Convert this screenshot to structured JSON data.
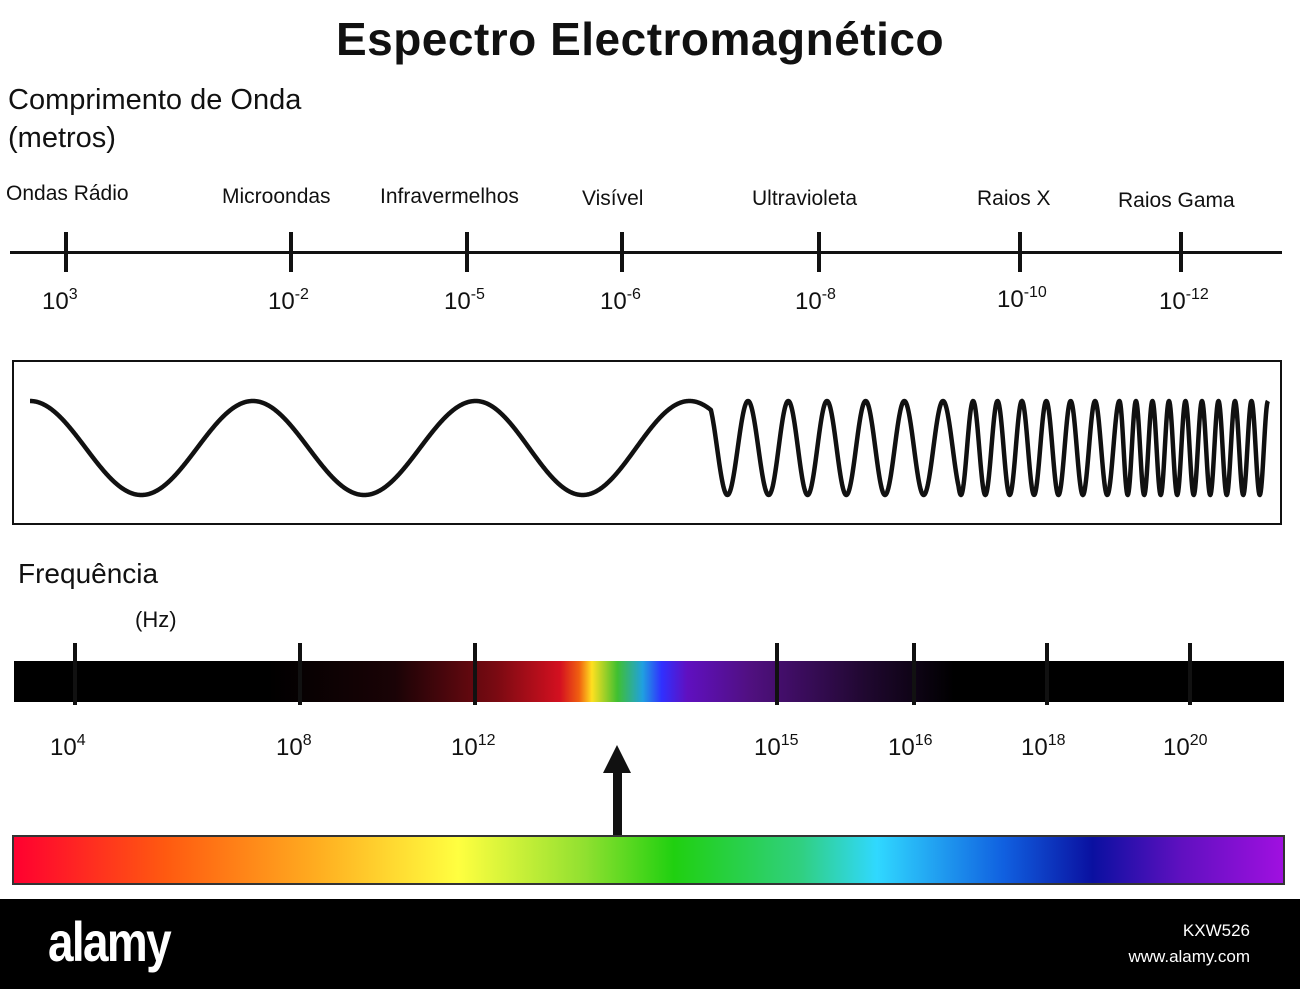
{
  "title": "Espectro Electromagnético",
  "wavelength": {
    "label_line1": "Comprimento de Onda",
    "label_line2": "(metros)",
    "regions": [
      "Ondas Rádio",
      "Microondas",
      "Infravermelhos",
      "Visível",
      "Ultravioleta",
      "Raios X",
      "Raios Gama"
    ],
    "ticks": [
      {
        "base": "10",
        "exp": "3"
      },
      {
        "base": "10",
        "exp": "-2"
      },
      {
        "base": "10",
        "exp": "-5"
      },
      {
        "base": "10",
        "exp": "-6"
      },
      {
        "base": "10",
        "exp": "-8"
      },
      {
        "base": "10",
        "exp": "-10"
      },
      {
        "base": "10",
        "exp": "-12"
      }
    ]
  },
  "frequency": {
    "label": "Frequência",
    "unit": "(Hz)",
    "ticks": [
      {
        "base": "10",
        "exp": "4"
      },
      {
        "base": "10",
        "exp": "8"
      },
      {
        "base": "10",
        "exp": "12"
      },
      {
        "base": "10",
        "exp": "15"
      },
      {
        "base": "10",
        "exp": "16"
      },
      {
        "base": "10",
        "exp": "18"
      },
      {
        "base": "10",
        "exp": "20"
      }
    ]
  },
  "colors": {
    "line": "#111111",
    "footer_bg": "#000000",
    "footer_text": "#ffffff"
  },
  "footer": {
    "brand": "alamy",
    "image_id": "KXW526",
    "site": "www.alamy.com"
  }
}
